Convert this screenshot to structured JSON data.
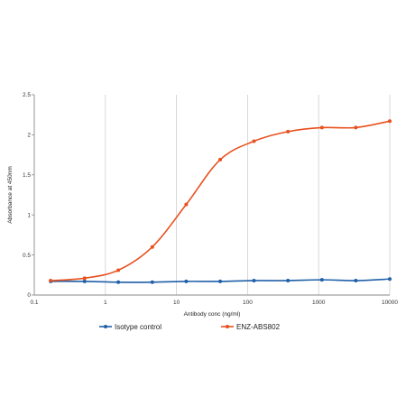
{
  "chart_data": {
    "type": "line",
    "xlabel": "Antibody conc (ng/ml)",
    "ylabel": "Absorbance at 450nm",
    "x_scale": "log",
    "xlim": [
      0.1,
      10000
    ],
    "ylim": [
      0,
      2.5
    ],
    "x_ticks": [
      "0.1",
      "1",
      "10",
      "100",
      "1000",
      "10000"
    ],
    "y_ticks": [
      "0",
      "0.5",
      "1",
      "1.5",
      "2",
      "2.5"
    ],
    "grid": "vertical",
    "legend_position": "bottom",
    "x": [
      0.17,
      0.51,
      1.52,
      4.57,
      13.7,
      41.2,
      123,
      370,
      1111,
      3333,
      10000
    ],
    "series": [
      {
        "name": "Isotype control",
        "color": "#1f5fa8",
        "marker": "circle",
        "values": [
          0.17,
          0.17,
          0.16,
          0.16,
          0.17,
          0.17,
          0.18,
          0.18,
          0.19,
          0.18,
          0.2
        ]
      },
      {
        "name": "ENZ-ABS802",
        "color": "#e8501e",
        "marker": "circle",
        "values": [
          0.18,
          0.21,
          0.31,
          0.6,
          1.13,
          1.69,
          1.92,
          2.04,
          2.09,
          2.09,
          2.17
        ]
      }
    ]
  }
}
